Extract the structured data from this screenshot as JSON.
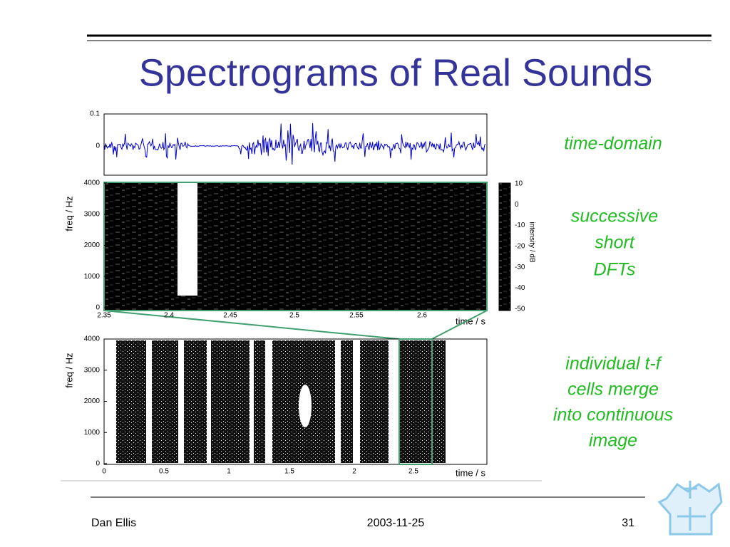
{
  "title": "Spectrograms of Real Sounds",
  "plots": {
    "waveform": {
      "yticks": [
        0.1,
        0
      ]
    },
    "spectrogram": {
      "ylabel": "freq / Hz",
      "xlabel": "time / s",
      "yticks": [
        4000,
        3000,
        2000,
        1000,
        0
      ],
      "xticks": [
        2.35,
        2.4,
        2.45,
        2.5,
        2.55,
        2.6
      ],
      "colorbar": {
        "label": "intensity / dB",
        "ticks": [
          10,
          0,
          -10,
          -20,
          -30,
          -40,
          -50
        ]
      }
    },
    "overview": {
      "ylabel": "freq / Hz",
      "xlabel": "time / s",
      "yticks": [
        4000,
        3000,
        2000,
        1000,
        0
      ],
      "xticks": [
        0,
        0.5,
        1,
        1.5,
        2,
        2.5
      ]
    }
  },
  "annotations": {
    "time_domain": [
      "time-domain"
    ],
    "dfts": [
      "successive",
      "short",
      "DFTs"
    ],
    "cells": [
      "individual t-f",
      "cells merge",
      "into continuous",
      "image"
    ]
  },
  "footer": {
    "author": "Dan Ellis",
    "date": "2003-11-25",
    "page": "31"
  }
}
